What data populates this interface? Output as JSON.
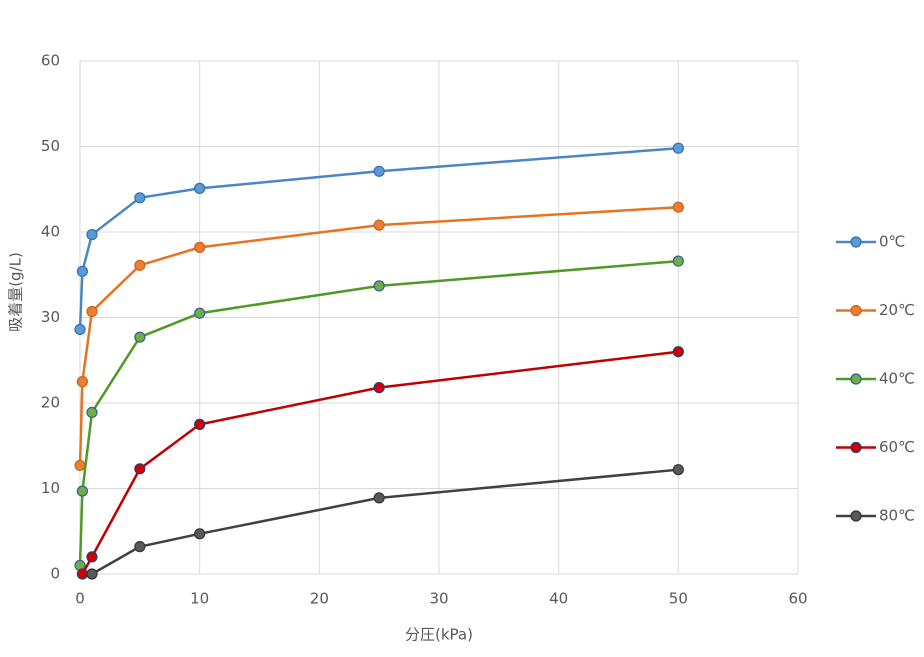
{
  "chart_data": {
    "type": "line",
    "x_label": "分圧(kPa)",
    "y_label": "吸着量(g/L)",
    "xlim": [
      0,
      60
    ],
    "xticks": [
      0,
      10,
      20,
      30,
      40,
      50,
      60
    ],
    "ylim": [
      0,
      60
    ],
    "yticks": [
      0,
      10,
      20,
      30,
      40,
      50,
      60
    ],
    "grid": true,
    "legend": "right",
    "series": [
      {
        "name": "0℃",
        "color": "#4a86c5",
        "marker_color": "#5b9bd5",
        "marker_edge": "#2f6fb5",
        "x": [
          0,
          0.2,
          1,
          5,
          10,
          25,
          50
        ],
        "values": [
          28.6,
          35.4,
          39.7,
          44.0,
          45.1,
          47.1,
          49.8
        ]
      },
      {
        "name": "20℃",
        "color": "#e8731f",
        "marker_color": "#ed7d31",
        "marker_edge": "#c8651f",
        "x": [
          0,
          0.2,
          1,
          5,
          10,
          25,
          50
        ],
        "values": [
          12.7,
          22.5,
          30.7,
          36.1,
          38.2,
          40.8,
          42.9
        ]
      },
      {
        "name": "40℃",
        "color": "#4e9a22",
        "marker_color": "#70ad47",
        "marker_edge": "#2f5f9a",
        "x": [
          0,
          0.2,
          1,
          5,
          10,
          25,
          50
        ],
        "values": [
          1.0,
          9.7,
          18.9,
          27.7,
          30.5,
          33.7,
          36.6
        ]
      },
      {
        "name": "60℃",
        "color": "#c00000",
        "marker_color": "#d00000",
        "marker_edge": "#1f3f7a",
        "x": [
          0.2,
          1,
          5,
          10,
          25,
          50
        ],
        "values": [
          0,
          2.0,
          12.3,
          17.5,
          21.8,
          26.0
        ]
      },
      {
        "name": "80℃",
        "color": "#404040",
        "marker_color": "#595959",
        "marker_edge": "#333333",
        "x": [
          1,
          5,
          10,
          25,
          50
        ],
        "values": [
          0,
          3.2,
          4.7,
          8.9,
          12.2
        ]
      }
    ]
  }
}
